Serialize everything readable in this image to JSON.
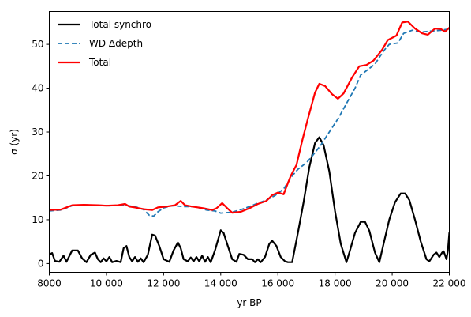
{
  "chart_data": {
    "type": "line",
    "xlabel": "yr BP",
    "ylabel": "σ (yr)",
    "xlim": [
      8000,
      22000
    ],
    "ylim": [
      -2,
      57.5
    ],
    "xticks": [
      8000,
      10000,
      12000,
      14000,
      16000,
      18000,
      20000,
      22000
    ],
    "xtick_labels": [
      "8000",
      "10 000",
      "12 000",
      "14 000",
      "16 000",
      "18 000",
      "20 000",
      "22 000"
    ],
    "yticks": [
      0,
      10,
      20,
      30,
      40,
      50
    ],
    "ytick_labels": [
      "0",
      "10",
      "20",
      "30",
      "40",
      "50"
    ],
    "legend_position": "top-left",
    "series": [
      {
        "name": "Total synchro",
        "color": "#000000",
        "style": "solid",
        "points": [
          [
            8000,
            2.0
          ],
          [
            8100,
            2.4
          ],
          [
            8200,
            0.6
          ],
          [
            8350,
            0.4
          ],
          [
            8500,
            1.8
          ],
          [
            8600,
            0.4
          ],
          [
            8800,
            3.0
          ],
          [
            9000,
            3.0
          ],
          [
            9150,
            1.2
          ],
          [
            9300,
            0.3
          ],
          [
            9450,
            2.0
          ],
          [
            9600,
            2.5
          ],
          [
            9700,
            1.0
          ],
          [
            9800,
            0.3
          ],
          [
            9900,
            1.2
          ],
          [
            10000,
            0.5
          ],
          [
            10100,
            1.5
          ],
          [
            10200,
            0.3
          ],
          [
            10350,
            0.6
          ],
          [
            10500,
            0.3
          ],
          [
            10600,
            3.5
          ],
          [
            10700,
            4.0
          ],
          [
            10800,
            1.5
          ],
          [
            10900,
            0.5
          ],
          [
            11000,
            1.5
          ],
          [
            11100,
            0.4
          ],
          [
            11200,
            1.2
          ],
          [
            11300,
            0.3
          ],
          [
            11450,
            2.0
          ],
          [
            11600,
            6.6
          ],
          [
            11700,
            6.4
          ],
          [
            11850,
            4.0
          ],
          [
            12000,
            1.0
          ],
          [
            12200,
            0.4
          ],
          [
            12350,
            3.0
          ],
          [
            12500,
            4.8
          ],
          [
            12600,
            3.5
          ],
          [
            12700,
            1.0
          ],
          [
            12850,
            0.5
          ],
          [
            12950,
            1.4
          ],
          [
            13050,
            0.5
          ],
          [
            13150,
            1.5
          ],
          [
            13250,
            0.5
          ],
          [
            13350,
            1.8
          ],
          [
            13450,
            0.4
          ],
          [
            13550,
            1.5
          ],
          [
            13650,
            0.3
          ],
          [
            13800,
            3.0
          ],
          [
            14000,
            7.6
          ],
          [
            14100,
            7.0
          ],
          [
            14250,
            4.0
          ],
          [
            14400,
            1.0
          ],
          [
            14550,
            0.4
          ],
          [
            14650,
            2.2
          ],
          [
            14800,
            2.0
          ],
          [
            14950,
            1.0
          ],
          [
            15100,
            1.0
          ],
          [
            15200,
            0.3
          ],
          [
            15300,
            1.0
          ],
          [
            15400,
            0.3
          ],
          [
            15550,
            1.5
          ],
          [
            15700,
            4.5
          ],
          [
            15800,
            5.2
          ],
          [
            15950,
            4.0
          ],
          [
            16100,
            1.5
          ],
          [
            16250,
            0.5
          ],
          [
            16350,
            0.3
          ],
          [
            16500,
            0.3
          ],
          [
            16700,
            7.0
          ],
          [
            16900,
            14.0
          ],
          [
            17100,
            22.0
          ],
          [
            17300,
            27.5
          ],
          [
            17450,
            28.8
          ],
          [
            17600,
            27.0
          ],
          [
            17800,
            21.0
          ],
          [
            18000,
            12.0
          ],
          [
            18200,
            4.5
          ],
          [
            18400,
            0.3
          ],
          [
            18500,
            2.5
          ],
          [
            18700,
            7.0
          ],
          [
            18900,
            9.5
          ],
          [
            19050,
            9.5
          ],
          [
            19200,
            7.5
          ],
          [
            19400,
            2.5
          ],
          [
            19550,
            0.3
          ],
          [
            19700,
            4.5
          ],
          [
            19900,
            10.0
          ],
          [
            20100,
            14.0
          ],
          [
            20300,
            16.0
          ],
          [
            20450,
            16.0
          ],
          [
            20600,
            14.5
          ],
          [
            20800,
            10.0
          ],
          [
            21000,
            5.0
          ],
          [
            21200,
            1.0
          ],
          [
            21300,
            0.5
          ],
          [
            21450,
            2.0
          ],
          [
            21550,
            2.5
          ],
          [
            21650,
            1.5
          ],
          [
            21750,
            2.5
          ],
          [
            21800,
            2.8
          ],
          [
            21900,
            1.0
          ],
          [
            21950,
            3.0
          ],
          [
            22000,
            7.0
          ]
        ]
      },
      {
        "name": "WD Δdepth",
        "color": "#1f77b4",
        "style": "dashed",
        "points": [
          [
            8000,
            12.0
          ],
          [
            8400,
            12.2
          ],
          [
            8800,
            13.2
          ],
          [
            9200,
            13.4
          ],
          [
            9700,
            13.3
          ],
          [
            10100,
            13.2
          ],
          [
            10600,
            13.3
          ],
          [
            11000,
            13.0
          ],
          [
            11300,
            12.3
          ],
          [
            11500,
            11.0
          ],
          [
            11650,
            10.8
          ],
          [
            11800,
            11.8
          ],
          [
            12000,
            12.7
          ],
          [
            12300,
            13.2
          ],
          [
            12700,
            13.0
          ],
          [
            13100,
            13.0
          ],
          [
            13500,
            12.2
          ],
          [
            13800,
            12.0
          ],
          [
            14000,
            11.5
          ],
          [
            14400,
            11.7
          ],
          [
            14800,
            12.5
          ],
          [
            15200,
            13.5
          ],
          [
            15600,
            14.5
          ],
          [
            15900,
            15.5
          ],
          [
            16200,
            17.0
          ],
          [
            16500,
            20.0
          ],
          [
            16700,
            21.5
          ],
          [
            17000,
            23.0
          ],
          [
            17200,
            24.5
          ],
          [
            17500,
            27.0
          ],
          [
            17800,
            30.0
          ],
          [
            18100,
            33.0
          ],
          [
            18400,
            36.5
          ],
          [
            18700,
            40.0
          ],
          [
            18900,
            43.0
          ],
          [
            19100,
            44.0
          ],
          [
            19400,
            45.5
          ],
          [
            19700,
            48.5
          ],
          [
            19900,
            50.0
          ],
          [
            20200,
            50.3
          ],
          [
            20400,
            52.5
          ],
          [
            20700,
            53.2
          ],
          [
            21000,
            52.8
          ],
          [
            21300,
            53.0
          ],
          [
            21700,
            53.2
          ],
          [
            22000,
            53.5
          ]
        ]
      },
      {
        "name": "Total",
        "color": "#ff0000",
        "style": "solid",
        "points": [
          [
            8000,
            12.2
          ],
          [
            8400,
            12.3
          ],
          [
            8800,
            13.3
          ],
          [
            9200,
            13.4
          ],
          [
            9700,
            13.3
          ],
          [
            10000,
            13.2
          ],
          [
            10400,
            13.3
          ],
          [
            10650,
            13.6
          ],
          [
            10800,
            13.0
          ],
          [
            11000,
            12.8
          ],
          [
            11300,
            12.4
          ],
          [
            11600,
            12.2
          ],
          [
            11800,
            12.8
          ],
          [
            12100,
            13.0
          ],
          [
            12400,
            13.3
          ],
          [
            12600,
            14.3
          ],
          [
            12750,
            13.3
          ],
          [
            13000,
            13.0
          ],
          [
            13400,
            12.6
          ],
          [
            13700,
            12.2
          ],
          [
            13850,
            12.6
          ],
          [
            14050,
            13.8
          ],
          [
            14200,
            12.8
          ],
          [
            14400,
            11.6
          ],
          [
            14700,
            11.8
          ],
          [
            15000,
            12.6
          ],
          [
            15300,
            13.6
          ],
          [
            15600,
            14.3
          ],
          [
            15800,
            15.6
          ],
          [
            16000,
            16.2
          ],
          [
            16200,
            15.8
          ],
          [
            16300,
            17.5
          ],
          [
            16450,
            20.0
          ],
          [
            16650,
            22.5
          ],
          [
            16850,
            28.0
          ],
          [
            17050,
            33.0
          ],
          [
            17300,
            39.0
          ],
          [
            17450,
            41.0
          ],
          [
            17650,
            40.5
          ],
          [
            17900,
            38.6
          ],
          [
            18100,
            37.6
          ],
          [
            18300,
            38.8
          ],
          [
            18600,
            42.5
          ],
          [
            18850,
            45.0
          ],
          [
            19100,
            45.3
          ],
          [
            19350,
            46.3
          ],
          [
            19650,
            48.8
          ],
          [
            19850,
            51.0
          ],
          [
            20150,
            52.0
          ],
          [
            20350,
            55.0
          ],
          [
            20550,
            55.2
          ],
          [
            20800,
            53.6
          ],
          [
            21050,
            52.5
          ],
          [
            21250,
            52.2
          ],
          [
            21500,
            53.6
          ],
          [
            21700,
            53.5
          ],
          [
            21850,
            52.9
          ],
          [
            22000,
            53.8
          ]
        ]
      }
    ]
  }
}
